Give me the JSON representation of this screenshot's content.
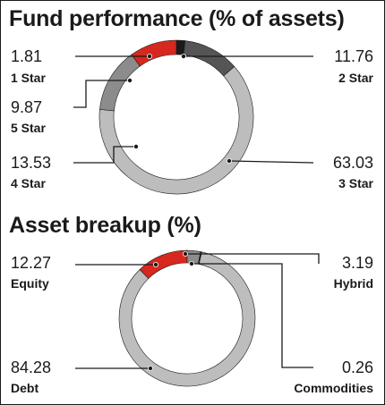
{
  "chart_data": [
    {
      "type": "pie",
      "title": "Fund performance (% of assets)",
      "categories": [
        "1 Star",
        "2 Star",
        "3 Star",
        "4 Star",
        "5 Star"
      ],
      "values": [
        1.81,
        11.76,
        63.03,
        13.53,
        9.87
      ],
      "value_labels": [
        "1.81",
        "11.76",
        "63.03",
        "13.53",
        "9.87"
      ],
      "colors": [
        "#1a1a1a",
        "#555555",
        "#bdbdbd",
        "#8c8c8c",
        "#d6281e"
      ]
    },
    {
      "type": "pie",
      "title": "Asset breakup (%)",
      "categories": [
        "Equity",
        "Hybrid",
        "Commodities",
        "Debt"
      ],
      "values": [
        12.27,
        3.19,
        0.26,
        84.28
      ],
      "value_labels": [
        "12.27",
        "3.19",
        "0.26",
        "84.28"
      ],
      "colors": [
        "#d6281e",
        "#8c8c8c",
        "#1a1a1a",
        "#bdbdbd"
      ]
    }
  ]
}
